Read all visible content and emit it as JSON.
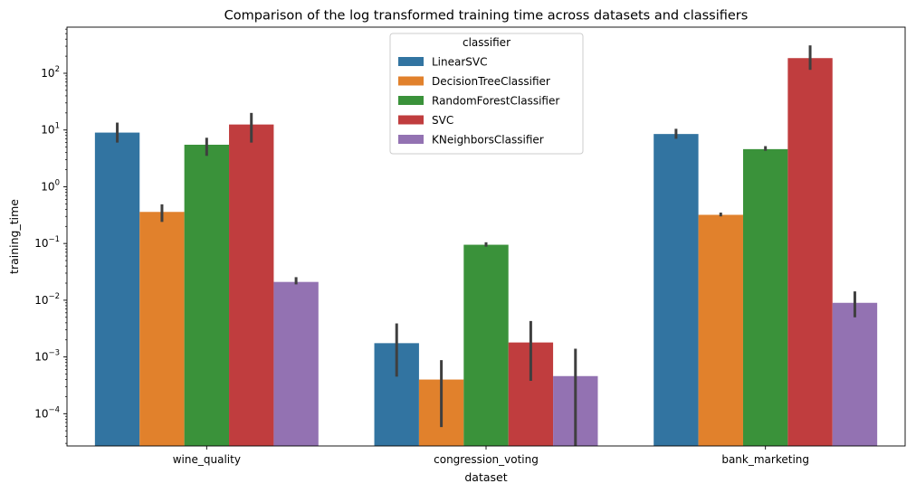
{
  "chart_data": {
    "type": "bar",
    "title": "Comparison of the log transformed training time across datasets and classifiers",
    "xlabel": "dataset",
    "ylabel": "training_time",
    "yscale": "log",
    "ylim": [
      2.7e-05,
      650
    ],
    "yticks": [
      {
        "value": 0.0001,
        "base": "10",
        "exp": "−4"
      },
      {
        "value": 0.001,
        "base": "10",
        "exp": "−3"
      },
      {
        "value": 0.01,
        "base": "10",
        "exp": "−2"
      },
      {
        "value": 0.1,
        "base": "10",
        "exp": "−1"
      },
      {
        "value": 1,
        "base": "10",
        "exp": "0"
      },
      {
        "value": 10,
        "base": "10",
        "exp": "1"
      },
      {
        "value": 100,
        "base": "10",
        "exp": "2"
      }
    ],
    "categories": [
      "wine_quality",
      "congression_voting",
      "bank_marketing"
    ],
    "legend": {
      "title": "classifier",
      "position": "upper-center"
    },
    "grid": false,
    "series": [
      {
        "name": "LinearSVC",
        "color": "#3274a1",
        "values": [
          9.0,
          0.00175,
          8.5
        ],
        "err_low": [
          6.0,
          0.00045,
          7.0
        ],
        "err_high": [
          13.5,
          0.0039,
          10.5
        ]
      },
      {
        "name": "DecisionTreeClassifier",
        "color": "#e1812c",
        "values": [
          0.36,
          0.0004,
          0.32
        ],
        "err_low": [
          0.24,
          5.8e-05,
          0.3
        ],
        "err_high": [
          0.49,
          0.00088,
          0.35
        ]
      },
      {
        "name": "RandomForestClassifier",
        "color": "#3a923a",
        "values": [
          5.5,
          0.095,
          4.6
        ],
        "err_low": [
          3.5,
          0.088,
          4.3
        ],
        "err_high": [
          7.3,
          0.105,
          5.2
        ]
      },
      {
        "name": "SVC",
        "color": "#c03d3e",
        "values": [
          12.5,
          0.0018,
          185
        ],
        "err_low": [
          6.0,
          0.00038,
          115
        ],
        "err_high": [
          20,
          0.0043,
          310
        ]
      },
      {
        "name": "KNeighborsClassifier",
        "color": "#9372b2",
        "values": [
          0.021,
          0.00046,
          0.009
        ],
        "err_low": [
          0.019,
          2.7e-05,
          0.005
        ],
        "err_high": [
          0.0255,
          0.0014,
          0.0143
        ]
      }
    ]
  }
}
